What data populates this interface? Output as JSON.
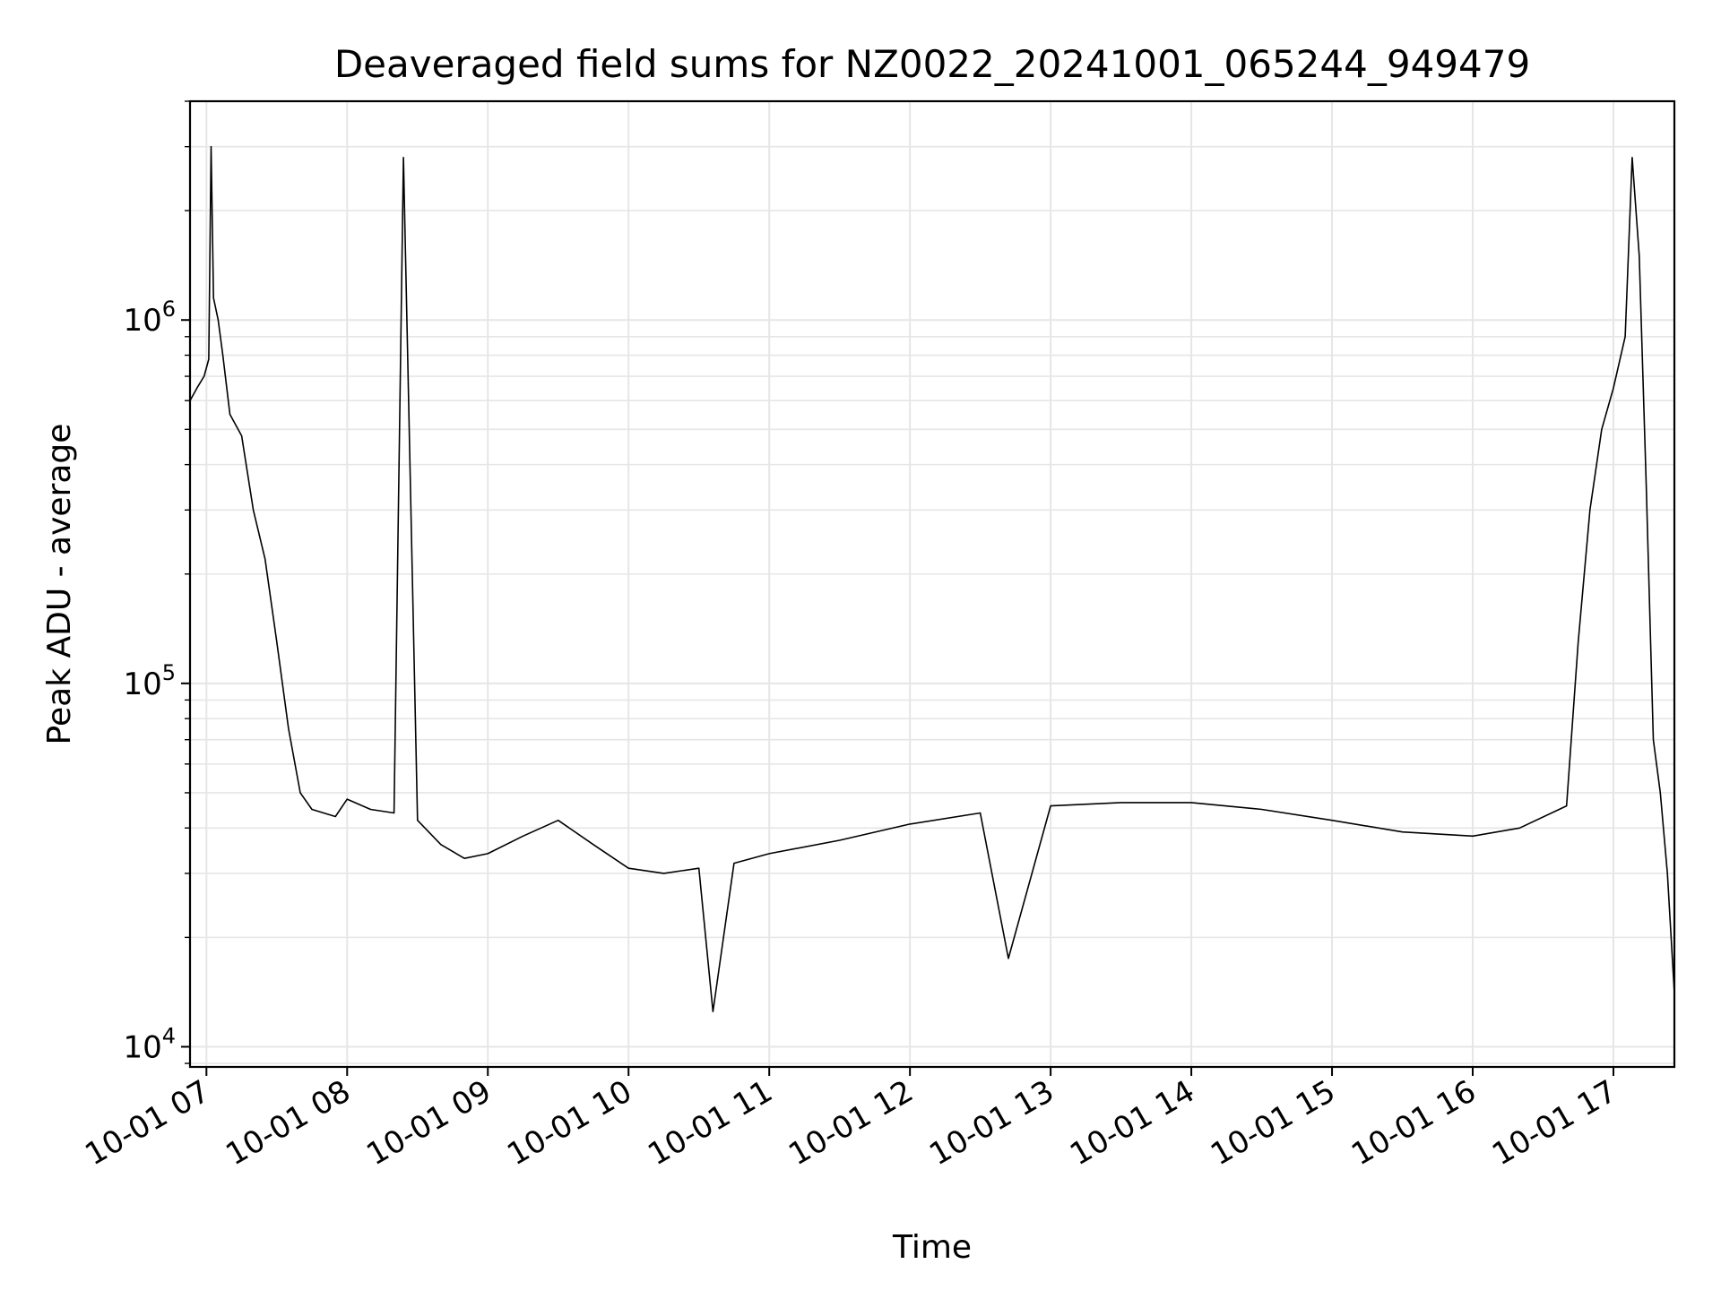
{
  "chart_data": {
    "type": "line",
    "title": "Deaveraged field sums for NZ0022_20241001_065244_949479",
    "xlabel": "Time",
    "ylabel": "Peak ADU - average",
    "yscale": "log",
    "ylim": [
      8800,
      4000000
    ],
    "xlim": [
      "2024-10-01T06:53",
      "2024-10-01T17:26"
    ],
    "grid": true,
    "line_color": "#000000",
    "grid_color": "#e6e6e6",
    "x_ticks": [
      {
        "t": "2024-10-01T07:00",
        "label": "10-01 07"
      },
      {
        "t": "2024-10-01T08:00",
        "label": "10-01 08"
      },
      {
        "t": "2024-10-01T09:00",
        "label": "10-01 09"
      },
      {
        "t": "2024-10-01T10:00",
        "label": "10-01 10"
      },
      {
        "t": "2024-10-01T11:00",
        "label": "10-01 11"
      },
      {
        "t": "2024-10-01T12:00",
        "label": "10-01 12"
      },
      {
        "t": "2024-10-01T13:00",
        "label": "10-01 13"
      },
      {
        "t": "2024-10-01T14:00",
        "label": "10-01 14"
      },
      {
        "t": "2024-10-01T15:00",
        "label": "10-01 15"
      },
      {
        "t": "2024-10-01T16:00",
        "label": "10-01 16"
      },
      {
        "t": "2024-10-01T17:00",
        "label": "10-01 17"
      }
    ],
    "y_ticks": [
      {
        "value": 10000,
        "base": "10",
        "exp": "4"
      },
      {
        "value": 100000,
        "base": "10",
        "exp": "5"
      },
      {
        "value": 1000000,
        "base": "10",
        "exp": "6"
      }
    ],
    "series": [
      {
        "points": [
          [
            "2024-10-01T06:53",
            600000
          ],
          [
            "2024-10-01T06:56",
            650000
          ],
          [
            "2024-10-01T06:59",
            700000
          ],
          [
            "2024-10-01T07:01",
            780000
          ],
          [
            "2024-10-01T07:02",
            3000000
          ],
          [
            "2024-10-01T07:03",
            1150000
          ],
          [
            "2024-10-01T07:05",
            1000000
          ],
          [
            "2024-10-01T07:07",
            800000
          ],
          [
            "2024-10-01T07:10",
            550000
          ],
          [
            "2024-10-01T07:15",
            480000
          ],
          [
            "2024-10-01T07:20",
            300000
          ],
          [
            "2024-10-01T07:25",
            220000
          ],
          [
            "2024-10-01T07:30",
            130000
          ],
          [
            "2024-10-01T07:35",
            75000
          ],
          [
            "2024-10-01T07:40",
            50000
          ],
          [
            "2024-10-01T07:45",
            45000
          ],
          [
            "2024-10-01T07:50",
            44000
          ],
          [
            "2024-10-01T07:55",
            43000
          ],
          [
            "2024-10-01T08:00",
            48000
          ],
          [
            "2024-10-01T08:10",
            45000
          ],
          [
            "2024-10-01T08:20",
            44000
          ],
          [
            "2024-10-01T08:24",
            2800000
          ],
          [
            "2024-10-01T08:30",
            42000
          ],
          [
            "2024-10-01T08:40",
            36000
          ],
          [
            "2024-10-01T08:50",
            33000
          ],
          [
            "2024-10-01T09:00",
            34000
          ],
          [
            "2024-10-01T09:15",
            38000
          ],
          [
            "2024-10-01T09:30",
            42000
          ],
          [
            "2024-10-01T09:45",
            36000
          ],
          [
            "2024-10-01T10:00",
            31000
          ],
          [
            "2024-10-01T10:15",
            30000
          ],
          [
            "2024-10-01T10:30",
            31000
          ],
          [
            "2024-10-01T10:36",
            12500
          ],
          [
            "2024-10-01T10:45",
            32000
          ],
          [
            "2024-10-01T11:00",
            34000
          ],
          [
            "2024-10-01T11:30",
            37000
          ],
          [
            "2024-10-01T12:00",
            41000
          ],
          [
            "2024-10-01T12:30",
            44000
          ],
          [
            "2024-10-01T12:42",
            17500
          ],
          [
            "2024-10-01T13:00",
            46000
          ],
          [
            "2024-10-01T13:30",
            47000
          ],
          [
            "2024-10-01T14:00",
            47000
          ],
          [
            "2024-10-01T14:30",
            45000
          ],
          [
            "2024-10-01T15:00",
            42000
          ],
          [
            "2024-10-01T15:30",
            39000
          ],
          [
            "2024-10-01T16:00",
            38000
          ],
          [
            "2024-10-01T16:20",
            40000
          ],
          [
            "2024-10-01T16:40",
            46000
          ],
          [
            "2024-10-01T16:45",
            130000
          ],
          [
            "2024-10-01T16:50",
            300000
          ],
          [
            "2024-10-01T16:55",
            500000
          ],
          [
            "2024-10-01T17:00",
            650000
          ],
          [
            "2024-10-01T17:05",
            900000
          ],
          [
            "2024-10-01T17:08",
            2800000
          ],
          [
            "2024-10-01T17:11",
            1500000
          ],
          [
            "2024-10-01T17:14",
            350000
          ],
          [
            "2024-10-01T17:17",
            70000
          ],
          [
            "2024-10-01T17:20",
            50000
          ],
          [
            "2024-10-01T17:23",
            30000
          ],
          [
            "2024-10-01T17:26",
            14000
          ]
        ]
      }
    ]
  }
}
